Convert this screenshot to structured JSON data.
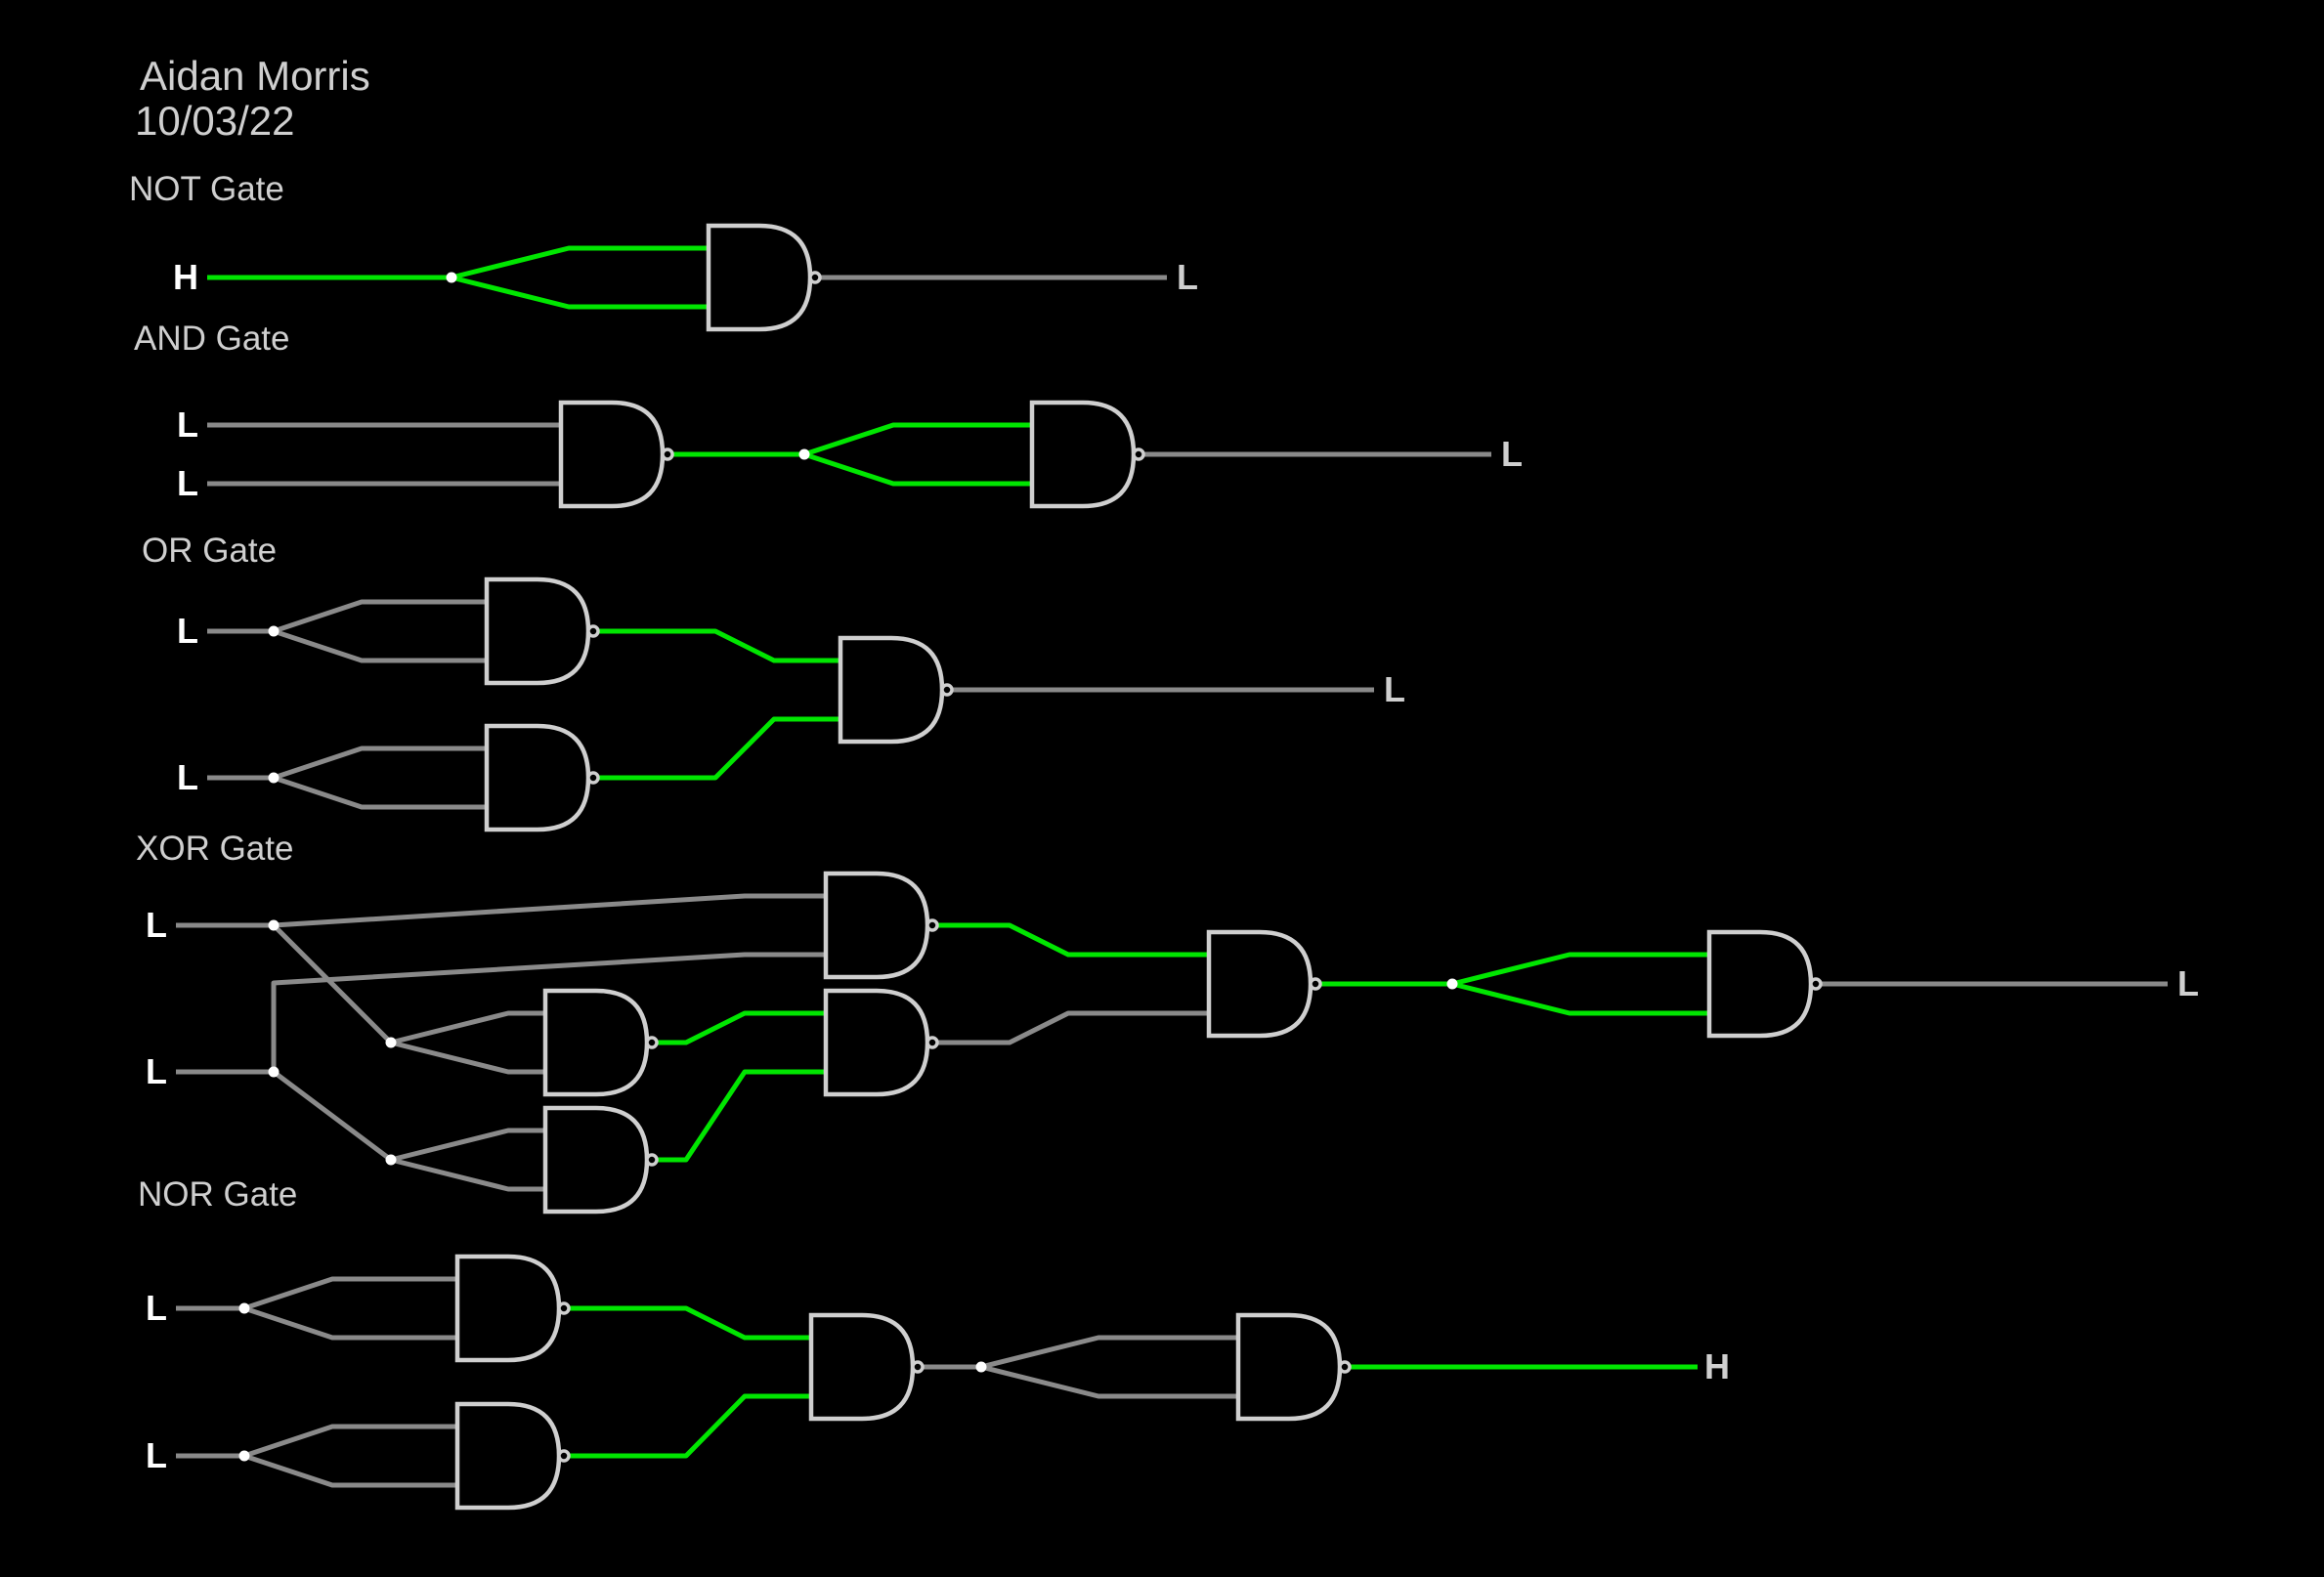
{
  "header": {
    "author": "Aidan Morris",
    "date": "10/03/22"
  },
  "sections": [
    {
      "label": "NOT Gate"
    },
    {
      "label": "AND Gate"
    },
    {
      "label": "OR Gate"
    },
    {
      "label": "XOR Gate"
    },
    {
      "label": "NOR Gate"
    }
  ],
  "io": {
    "not_in": "H",
    "not_out": "L",
    "and_in_a": "L",
    "and_in_b": "L",
    "and_out": "L",
    "or_in_a": "L",
    "or_in_b": "L",
    "or_out": "L",
    "xor_in_a": "L",
    "xor_in_b": "L",
    "xor_out": "L",
    "nor_in_a": "L",
    "nor_in_b": "L",
    "nor_out": "H"
  },
  "colors": {
    "background": "#000000",
    "wire_high": "#00e600",
    "wire_low": "#8a8a8a",
    "gate_outline": "#cfcfcf",
    "input_label": "#ffffff",
    "output_label": "#cfcfcf",
    "text": "#cfcfcf"
  },
  "gate_type": "NAND"
}
